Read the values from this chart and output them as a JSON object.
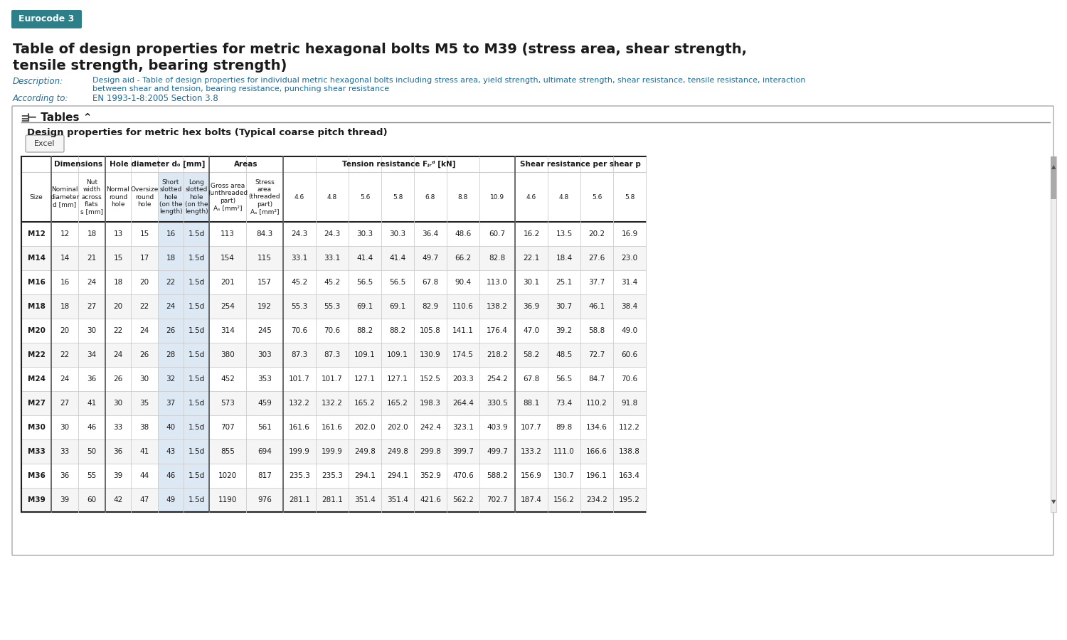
{
  "title": "Table of design properties for metric hexagonal bolts M5 to M39 (stress area, shear strength,\ntensile strength, bearing strength)",
  "eurocode_label": "Eurocode 3",
  "description_label": "Description:",
  "description_text": "Design aid - Table of design properties for individual metric hexagonal bolts including stress area, yield strength, ultimate strength, shear resistance, tensile resistance, interaction\nbetween shear and tension, bearing resistance, punching shear resistance",
  "according_label": "According to:",
  "according_text": "EN 1993-1-8:2005 Section 3.8",
  "table_subtitle": "Design properties for metric hex bolts (Typical coarse pitch thread)",
  "col_groups": [
    {
      "label": "",
      "span": 1
    },
    {
      "label": "Dimensions",
      "span": 2
    },
    {
      "label": "Hole diameter d₀ [mm]",
      "span": 4
    },
    {
      "label": "Areas",
      "span": 2
    },
    {
      "label": "Tension resistance Fⱼᵣᵈ [kN]",
      "span": 7
    },
    {
      "label": "Shear resistance per shear p",
      "span": 4
    }
  ],
  "col_headers": [
    "Size",
    "Nominal\ndiameter\nd [mm]",
    "Nut\nwidth\nacross\nflats\ns [mm]",
    "Normal\nround\nhole",
    "Oversize\nround\nhole",
    "Short\nslotted\nhole\n(on the\nlength)",
    "Long\nslotted\nhole\n(on the\nlength)",
    "Gross area\n(unthreaded\npart)\nAₛ [mm²]",
    "Stress\narea\n(threaded\npart)\nAₛ [mm²]",
    "4.6",
    "4.8",
    "5.6",
    "5.8",
    "6.8",
    "8.8",
    "10.9",
    "4.6",
    "4.8",
    "5.6",
    "5.8"
  ],
  "rows": [
    [
      "M12",
      "12",
      "18",
      "13",
      "15",
      "16",
      "1.5d",
      "113",
      "84.3",
      "24.3",
      "24.3",
      "30.3",
      "30.3",
      "36.4",
      "48.6",
      "60.7",
      "16.2",
      "13.5",
      "20.2",
      "16.9"
    ],
    [
      "M14",
      "14",
      "21",
      "15",
      "17",
      "18",
      "1.5d",
      "154",
      "115",
      "33.1",
      "33.1",
      "41.4",
      "41.4",
      "49.7",
      "66.2",
      "82.8",
      "22.1",
      "18.4",
      "27.6",
      "23.0"
    ],
    [
      "M16",
      "16",
      "24",
      "18",
      "20",
      "22",
      "1.5d",
      "201",
      "157",
      "45.2",
      "45.2",
      "56.5",
      "56.5",
      "67.8",
      "90.4",
      "113.0",
      "30.1",
      "25.1",
      "37.7",
      "31.4"
    ],
    [
      "M18",
      "18",
      "27",
      "20",
      "22",
      "24",
      "1.5d",
      "254",
      "192",
      "55.3",
      "55.3",
      "69.1",
      "69.1",
      "82.9",
      "110.6",
      "138.2",
      "36.9",
      "30.7",
      "46.1",
      "38.4"
    ],
    [
      "M20",
      "20",
      "30",
      "22",
      "24",
      "26",
      "1.5d",
      "314",
      "245",
      "70.6",
      "70.6",
      "88.2",
      "88.2",
      "105.8",
      "141.1",
      "176.4",
      "47.0",
      "39.2",
      "58.8",
      "49.0"
    ],
    [
      "M22",
      "22",
      "34",
      "24",
      "26",
      "28",
      "1.5d",
      "380",
      "303",
      "87.3",
      "87.3",
      "109.1",
      "109.1",
      "130.9",
      "174.5",
      "218.2",
      "58.2",
      "48.5",
      "72.7",
      "60.6"
    ],
    [
      "M24",
      "24",
      "36",
      "26",
      "30",
      "32",
      "1.5d",
      "452",
      "353",
      "101.7",
      "101.7",
      "127.1",
      "127.1",
      "152.5",
      "203.3",
      "254.2",
      "67.8",
      "56.5",
      "84.7",
      "70.6"
    ],
    [
      "M27",
      "27",
      "41",
      "30",
      "35",
      "37",
      "1.5d",
      "573",
      "459",
      "132.2",
      "132.2",
      "165.2",
      "165.2",
      "198.3",
      "264.4",
      "330.5",
      "88.1",
      "73.4",
      "110.2",
      "91.8"
    ],
    [
      "M30",
      "30",
      "46",
      "33",
      "38",
      "40",
      "1.5d",
      "707",
      "561",
      "161.6",
      "161.6",
      "202.0",
      "202.0",
      "242.4",
      "323.1",
      "403.9",
      "107.7",
      "89.8",
      "134.6",
      "112.2"
    ],
    [
      "M33",
      "33",
      "50",
      "36",
      "41",
      "43",
      "1.5d",
      "855",
      "694",
      "199.9",
      "199.9",
      "249.8",
      "249.8",
      "299.8",
      "399.7",
      "499.7",
      "133.2",
      "111.0",
      "166.6",
      "138.8"
    ],
    [
      "M36",
      "36",
      "55",
      "39",
      "44",
      "46",
      "1.5d",
      "1020",
      "817",
      "235.3",
      "235.3",
      "294.1",
      "294.1",
      "352.9",
      "470.6",
      "588.2",
      "156.9",
      "130.7",
      "196.1",
      "163.4"
    ],
    [
      "M39",
      "39",
      "60",
      "42",
      "47",
      "49",
      "1.5d",
      "1190",
      "976",
      "281.1",
      "281.1",
      "351.4",
      "351.4",
      "421.6",
      "562.2",
      "702.7",
      "187.4",
      "156.2",
      "234.2",
      "195.2"
    ]
  ],
  "highlight_cols": [
    5,
    6,
    7
  ],
  "bg_color": "#ffffff",
  "header_bg": "#ffffff",
  "alt_row_bg": "#f0f0f0",
  "eurocode_bg": "#2d7f8a",
  "eurocode_text": "#ffffff",
  "link_color": "#1a6ea0",
  "title_color": "#1a1a1a",
  "border_color": "#333333",
  "highlight_col_bg": "#dde8f0"
}
